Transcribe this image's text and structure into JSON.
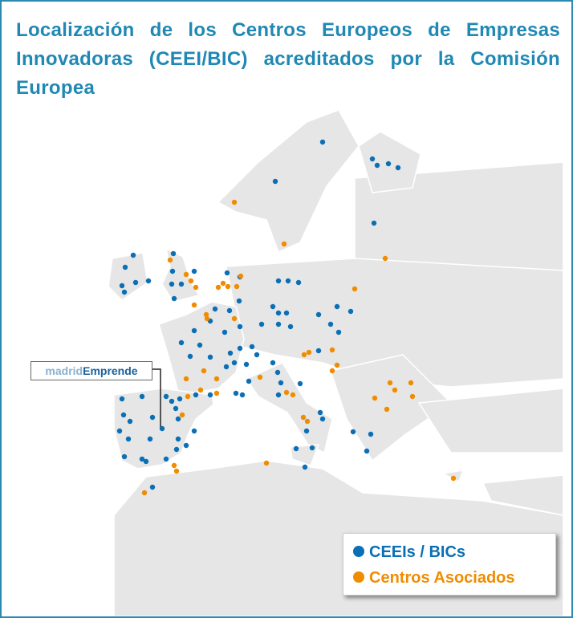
{
  "title": "Localización de los Centros Europeos de Empresas Innovadoras (CEEI/BIC) acreditados por la Comisión Europea",
  "callout": {
    "part1": "madrid",
    "part2": "Emprende"
  },
  "legend": [
    {
      "label": "CEEIs / BICs",
      "color": "#0a6fb5"
    },
    {
      "label": "Centros Asociados",
      "color": "#f08c00"
    }
  ]
}
